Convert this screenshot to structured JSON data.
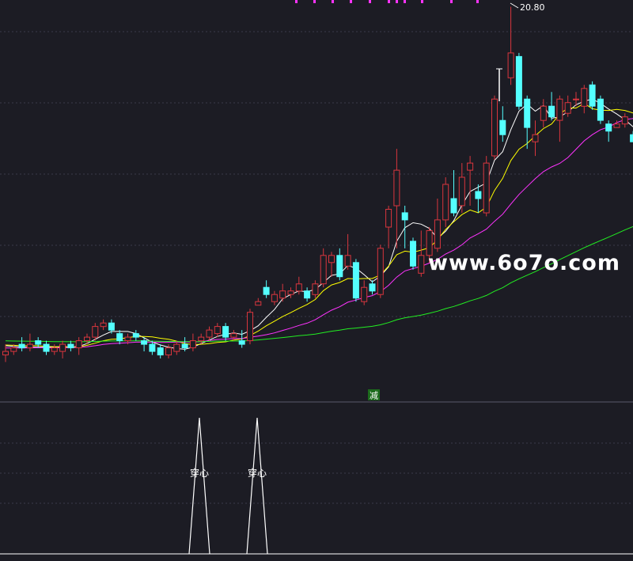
{
  "colors": {
    "background": "#1c1c24",
    "grid": "#3a3a4a",
    "up": "#d9363e",
    "down": "#54ffff",
    "ma5": "#ffffff",
    "ma10": "#ffff00",
    "ma20": "#ff33ff",
    "ma60": "#22ee22",
    "watermark": "#ffffff",
    "signal_line": "#ffffff",
    "jian_bg": "#1c6b1c",
    "top_marks": "#ff33ff"
  },
  "chart_data": [
    {
      "type": "candlestick",
      "title": "",
      "price_range": [
        10.3,
        20.9
      ],
      "grid": true,
      "high_label": "20.80",
      "watermark": "www.6o7o.com",
      "marker_text": "减",
      "series_lines": [
        {
          "key": "ma5",
          "color": "#ffffff"
        },
        {
          "key": "ma10",
          "color": "#ffff00"
        },
        {
          "key": "ma20",
          "color": "#ff33ff"
        },
        {
          "key": "ma60",
          "color": "#22ee22"
        }
      ],
      "candles": [
        [
          11.0,
          11.1,
          11.3,
          10.8
        ],
        [
          11.1,
          11.2,
          11.3,
          11.0
        ],
        [
          11.3,
          11.2,
          11.5,
          11.1
        ],
        [
          11.2,
          11.3,
          11.6,
          11.1
        ],
        [
          11.4,
          11.3,
          11.5,
          11.2
        ],
        [
          11.3,
          11.1,
          11.4,
          11.0
        ],
        [
          11.1,
          11.2,
          11.3,
          11.0
        ],
        [
          11.1,
          11.3,
          11.4,
          10.9
        ],
        [
          11.3,
          11.2,
          11.4,
          11.1
        ],
        [
          11.2,
          11.4,
          11.5,
          11.0
        ],
        [
          11.4,
          11.5,
          11.6,
          11.3
        ],
        [
          11.5,
          11.8,
          11.9,
          11.4
        ],
        [
          11.8,
          11.9,
          12.0,
          11.7
        ],
        [
          11.9,
          11.7,
          12.0,
          11.6
        ],
        [
          11.6,
          11.4,
          11.7,
          11.3
        ],
        [
          11.4,
          11.5,
          11.6,
          11.3
        ],
        [
          11.6,
          11.5,
          11.7,
          11.4
        ],
        [
          11.4,
          11.3,
          11.5,
          11.1
        ],
        [
          11.3,
          11.1,
          11.4,
          11.0
        ],
        [
          11.2,
          11.0,
          11.3,
          10.9
        ],
        [
          11.0,
          11.2,
          11.3,
          10.9
        ],
        [
          11.1,
          11.3,
          11.4,
          11.0
        ],
        [
          11.3,
          11.2,
          11.5,
          11.1
        ],
        [
          11.2,
          11.4,
          11.6,
          11.1
        ],
        [
          11.4,
          11.5,
          11.6,
          11.3
        ],
        [
          11.5,
          11.7,
          11.8,
          11.4
        ],
        [
          11.6,
          11.8,
          11.9,
          11.5
        ],
        [
          11.8,
          11.5,
          11.9,
          11.4
        ],
        [
          11.5,
          11.6,
          11.7,
          11.4
        ],
        [
          11.4,
          11.3,
          11.7,
          11.2
        ],
        [
          11.4,
          12.2,
          12.3,
          11.3
        ],
        [
          12.4,
          12.5,
          12.6,
          12.4
        ],
        [
          12.9,
          12.7,
          13.1,
          12.6
        ],
        [
          12.5,
          12.7,
          12.8,
          12.4
        ],
        [
          12.6,
          12.8,
          13.0,
          12.5
        ],
        [
          12.7,
          12.8,
          12.9,
          12.6
        ],
        [
          12.8,
          13.0,
          13.2,
          12.7
        ],
        [
          12.8,
          12.6,
          12.9,
          12.5
        ],
        [
          12.7,
          13.0,
          13.1,
          12.6
        ],
        [
          13.0,
          13.8,
          14.0,
          12.9
        ],
        [
          13.6,
          13.8,
          13.9,
          13.2
        ],
        [
          13.8,
          13.2,
          14.0,
          13.1
        ],
        [
          13.5,
          13.8,
          14.4,
          13.4
        ],
        [
          13.6,
          12.6,
          13.7,
          12.5
        ],
        [
          12.5,
          12.9,
          13.1,
          12.4
        ],
        [
          13.0,
          12.8,
          13.1,
          12.7
        ],
        [
          12.7,
          14.0,
          14.1,
          12.6
        ],
        [
          14.6,
          15.1,
          15.2,
          14.0
        ],
        [
          15.2,
          16.2,
          16.8,
          14.0
        ],
        [
          15.0,
          14.8,
          15.2,
          14.0
        ],
        [
          14.2,
          13.5,
          14.3,
          13.4
        ],
        [
          13.3,
          13.8,
          14.5,
          13.2
        ],
        [
          13.8,
          14.5,
          14.6,
          13.6
        ],
        [
          14.0,
          14.8,
          15.4,
          13.9
        ],
        [
          14.8,
          15.8,
          16.0,
          14.6
        ],
        [
          15.4,
          15.0,
          16.2,
          14.9
        ],
        [
          15.2,
          16.0,
          16.4,
          15.0
        ],
        [
          16.2,
          16.4,
          16.6,
          15.2
        ],
        [
          15.6,
          15.4,
          15.8,
          15.0
        ],
        [
          15.0,
          16.4,
          16.6,
          14.9
        ],
        [
          16.6,
          18.2,
          18.3,
          16.5
        ],
        [
          17.6,
          17.2,
          18.0,
          17.0
        ],
        [
          18.8,
          19.5,
          20.8,
          18.6
        ],
        [
          19.4,
          18.0,
          19.5,
          17.9
        ],
        [
          18.2,
          17.4,
          18.3,
          16.8
        ],
        [
          17.0,
          17.2,
          17.6,
          16.6
        ],
        [
          17.6,
          18.0,
          18.2,
          17.4
        ],
        [
          18.0,
          17.7,
          18.4,
          17.6
        ],
        [
          17.6,
          18.2,
          18.3,
          17.0
        ],
        [
          17.8,
          18.1,
          18.3,
          17.7
        ],
        [
          18.2,
          18.2,
          18.4,
          18.0
        ],
        [
          18.0,
          18.5,
          18.6,
          17.8
        ],
        [
          18.6,
          18.0,
          18.7,
          17.9
        ],
        [
          18.2,
          17.6,
          18.3,
          17.5
        ],
        [
          17.5,
          17.3,
          17.6,
          17.0
        ],
        [
          17.4,
          17.5,
          17.6,
          17.4
        ],
        [
          17.5,
          17.7,
          17.8,
          17.4
        ],
        [
          17.2,
          17.0,
          17.3,
          17.0
        ]
      ]
    },
    {
      "type": "line",
      "title": "",
      "grid": true,
      "values": [
        0,
        0,
        0,
        0,
        0,
        0,
        0,
        0,
        0,
        0,
        0,
        0,
        0,
        0,
        0,
        0,
        0,
        0,
        0,
        0,
        0,
        0,
        0,
        0,
        0,
        0,
        0,
        0,
        0,
        0,
        0,
        0,
        0,
        0,
        0,
        0,
        0,
        0,
        0,
        0,
        0,
        0,
        0,
        0,
        0,
        0,
        0,
        0,
        0,
        0,
        0,
        0,
        0,
        0,
        0,
        0,
        0,
        0,
        0,
        0,
        0,
        0,
        0,
        0,
        0,
        0,
        0,
        0,
        0,
        0,
        0,
        0,
        0,
        0,
        0,
        0,
        0,
        0,
        0,
        0,
        0,
        0,
        0,
        0,
        0,
        0
      ],
      "spikes": [
        {
          "index": 20,
          "value": 1,
          "label": "穿心"
        },
        {
          "index": 26,
          "value": 1,
          "label": "穿心"
        }
      ]
    }
  ]
}
